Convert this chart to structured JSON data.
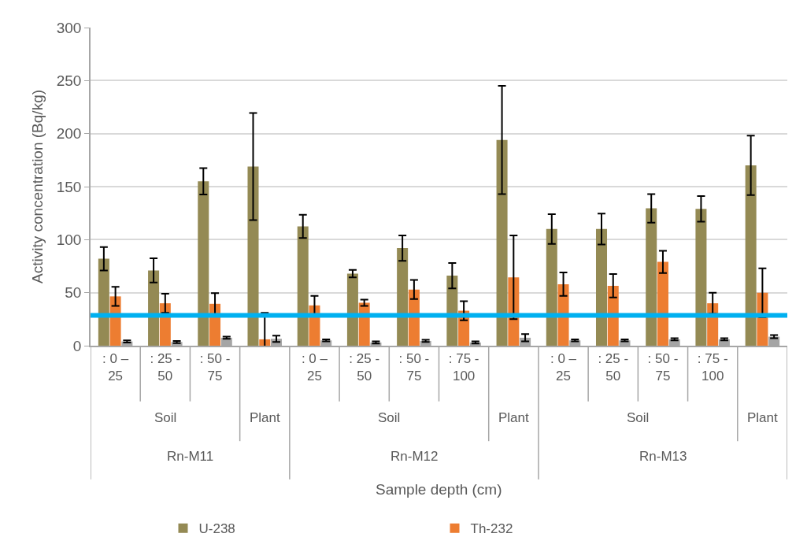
{
  "chart_data": {
    "type": "bar",
    "ylabel": "Activity concentration (Bq/kg)",
    "annotations": [
      "Soil",
      "Plant",
      "Soil",
      "Plant",
      "Soil",
      "Plant",
      "Rn-M11",
      "Rn-M12",
      "Rn-M13",
      "Sample depth (cm)"
    ],
    "categories": [
      ": 0 – 25",
      ": 25 - 50",
      ": 50 - 75",
      null,
      ": 0 – 25",
      ": 25 - 50",
      ": 50 - 75",
      ": 75 - 100",
      null,
      ": 0 – 25",
      ": 25 - 50",
      ": 50 - 75",
      ": 75 - 100",
      null
    ],
    "series": [
      {
        "name": "U-238",
        "color": "#948a54",
        "values": [
          82,
          71,
          155,
          169,
          112.5,
          68,
          92,
          66,
          194,
          110,
          110,
          129.5,
          129,
          170
        ],
        "errors": [
          11,
          11.5,
          12.5,
          50.5,
          11,
          3.5,
          12,
          12,
          51,
          14,
          14.5,
          13.5,
          12,
          28
        ]
      },
      {
        "name": "Th-232",
        "color": "#ed7d31",
        "values": [
          46.5,
          40,
          39.5,
          6,
          38,
          40.5,
          53,
          33,
          64.5,
          58,
          56.5,
          79,
          40,
          50
        ],
        "errors": [
          9,
          9,
          10,
          25,
          9,
          3,
          9,
          9,
          39.5,
          11,
          11,
          10.5,
          10,
          23
        ]
      },
      {
        "color": "#a5a5a5",
        "values": [
          4,
          3.5,
          7.5,
          6.5,
          5,
          3,
          4.5,
          3,
          7.5,
          5,
          5,
          6,
          6,
          8.5
        ],
        "errors": [
          1,
          1,
          1,
          3,
          1,
          1,
          1,
          1,
          3.5,
          1,
          1,
          1,
          1,
          1.5
        ]
      }
    ],
    "ylim": [
      0,
      300
    ],
    "yticks": [
      0,
      50,
      100,
      150,
      200,
      250,
      300
    ],
    "ref_lines": [
      {
        "axis": "y",
        "value": 28.5,
        "color": "#00b0f0"
      }
    ],
    "grid": "y",
    "legend": "bottom"
  }
}
